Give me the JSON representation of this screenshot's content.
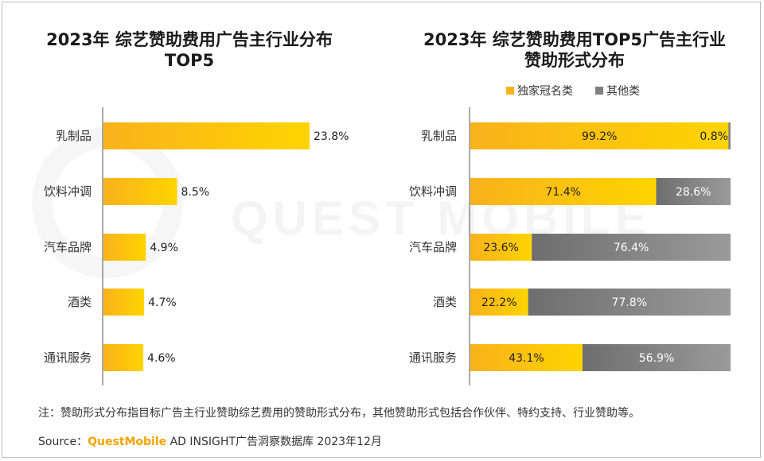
{
  "watermark": "QUEST MOBILE",
  "chart_data": [
    {
      "type": "bar",
      "orientation": "horizontal",
      "title_lines": [
        "2023年 综艺赞助费用广告主行业分布",
        "TOP5"
      ],
      "categories": [
        "乳制品",
        "饮料冲调",
        "汽车品牌",
        "酒类",
        "通讯服务"
      ],
      "values": [
        23.8,
        8.5,
        4.9,
        4.7,
        4.6
      ],
      "value_labels": [
        "23.8%",
        "8.5%",
        "4.9%",
        "4.7%",
        "4.6%"
      ],
      "xlim": [
        0,
        23.8
      ],
      "colors": {
        "bar_start": "#f9b21c",
        "bar_end": "#ffd400"
      }
    },
    {
      "type": "bar",
      "orientation": "horizontal",
      "stacked": true,
      "percent": true,
      "title_lines": [
        "2023年 综艺赞助费用TOP5广告主行业",
        "赞助形式分布"
      ],
      "categories": [
        "乳制品",
        "饮料冲调",
        "汽车品牌",
        "酒类",
        "通讯服务"
      ],
      "legend": {
        "position": "top"
      },
      "series": [
        {
          "name": "独家冠名类",
          "values": [
            99.2,
            71.4,
            23.6,
            22.2,
            43.1
          ],
          "labels": [
            "99.2%",
            "71.4%",
            "23.6%",
            "22.2%",
            "43.1%"
          ],
          "color": "#f9b21c"
        },
        {
          "name": "其他类",
          "values": [
            0.8,
            28.6,
            76.4,
            77.8,
            56.9
          ],
          "labels": [
            "0.8%",
            "28.6%",
            "76.4%",
            "77.8%",
            "56.9%"
          ],
          "color": "#7f7f7f"
        }
      ]
    }
  ],
  "footer": {
    "note": "注：赞助形式分布指目标广告主行业赞助综艺费用的赞助形式分布，其他赞助形式包括合作伙伴、特约支持、行业赞助等。",
    "source_prefix": "Source：",
    "source_brand": "QuestMobile",
    "source_rest": " AD INSIGHT广告洞察数据库 2023年12月"
  }
}
